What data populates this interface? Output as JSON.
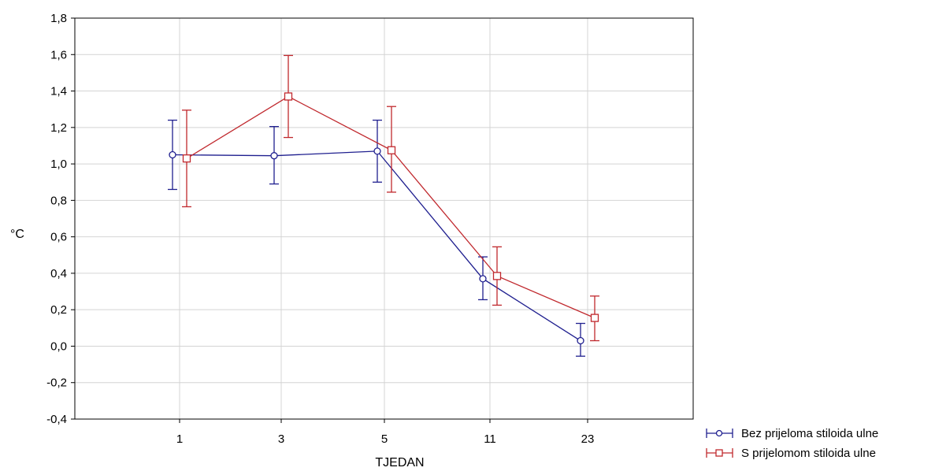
{
  "chart_data": {
    "type": "line",
    "title": "",
    "xlabel": "TJEDAN",
    "ylabel": "°C",
    "categories": [
      "1",
      "3",
      "5",
      "11",
      "23"
    ],
    "ylim": [
      -0.4,
      1.8
    ],
    "yticks": [
      "-0,4",
      "-0,2",
      "0,0",
      "0,2",
      "0,4",
      "0,6",
      "0,8",
      "1,0",
      "1,2",
      "1,4",
      "1,6",
      "1,8"
    ],
    "grid": true,
    "legend_position": "bottom-right",
    "series": [
      {
        "name": "Bez prijeloma stiloida ulne",
        "color": "#1f1f8f",
        "marker": "circle",
        "values": [
          1.05,
          1.045,
          1.07,
          0.37,
          0.03
        ],
        "err_low": [
          0.86,
          0.89,
          0.9,
          0.255,
          -0.055
        ],
        "err_high": [
          1.24,
          1.205,
          1.24,
          0.49,
          0.125
        ]
      },
      {
        "name": "S prijelomom stiloida ulne",
        "color": "#c0282d",
        "marker": "square",
        "values": [
          1.03,
          1.37,
          1.075,
          0.385,
          0.155
        ],
        "err_low": [
          0.765,
          1.145,
          0.845,
          0.225,
          0.03
        ],
        "err_high": [
          1.295,
          1.595,
          1.315,
          0.545,
          0.275
        ]
      }
    ]
  }
}
